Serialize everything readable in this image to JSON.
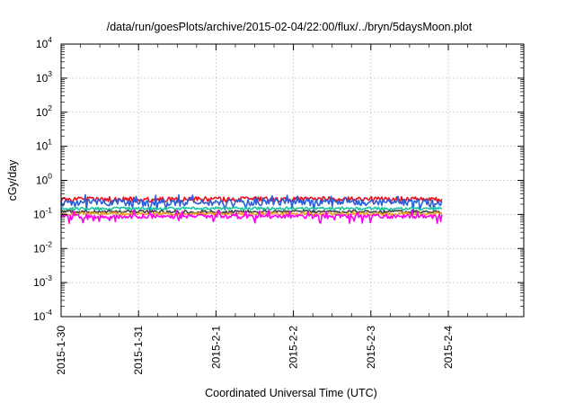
{
  "chart_data": {
    "type": "line",
    "title": "/data/run/goesPlots/archive/2015-02-04/22:00/flux/../bryn/5daysMoon.plot",
    "xlabel": "Coordinated Universal Time (UTC)",
    "ylabel": "cGy/day",
    "yscale": "log",
    "ylim": [
      0.0001,
      10000
    ],
    "xlim": [
      "2015-01-30",
      "2015-02-04T22:00"
    ],
    "grid": true,
    "legend": "none",
    "x_ticks": [
      "2015-1-30",
      "2015-1-31",
      "2015-2-1",
      "2015-2-2",
      "2015-2-3",
      "2015-2-4"
    ],
    "y_ticks": [
      {
        "base": "10",
        "exp": "4",
        "value": 10000
      },
      {
        "base": "10",
        "exp": "3",
        "value": 1000
      },
      {
        "base": "10",
        "exp": "2",
        "value": 100
      },
      {
        "base": "10",
        "exp": "1",
        "value": 10
      },
      {
        "base": "10",
        "exp": "0",
        "value": 1
      },
      {
        "base": "10",
        "exp": "-1",
        "value": 0.1
      },
      {
        "base": "10",
        "exp": "-2",
        "value": 0.01
      },
      {
        "base": "10",
        "exp": "-3",
        "value": 0.001
      },
      {
        "base": "10",
        "exp": "-4",
        "value": 0.0001
      }
    ],
    "series": [
      {
        "color": "#e8121e",
        "level": 0.28,
        "jitter": 0.18,
        "dip": 0.0
      },
      {
        "color": "#2b5fd9",
        "level": 0.23,
        "jitter": 0.22,
        "dip": 0.12
      },
      {
        "color": "#19c4a0",
        "level": 0.15,
        "jitter": 0.1,
        "dip": 0.0
      },
      {
        "color": "#444444",
        "level": 0.12,
        "jitter": 0.1,
        "dip": 0.0
      },
      {
        "color": "#f0a020",
        "level": 0.105,
        "jitter": 0.1,
        "dip": 0.0
      },
      {
        "color": "#ff00ee",
        "level": 0.088,
        "jitter": 0.14,
        "dip": 0.1
      }
    ]
  }
}
